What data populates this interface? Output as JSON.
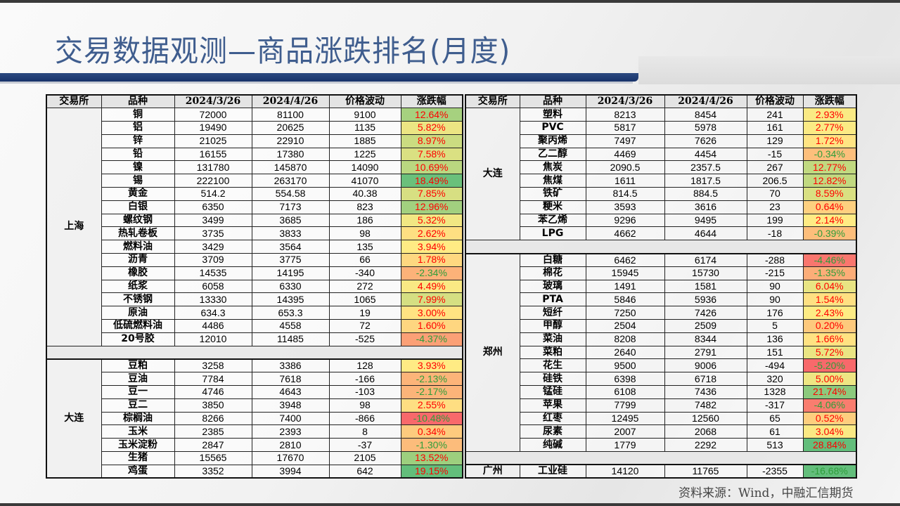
{
  "title": "交易数据观测—商品涨跌排名(月度)",
  "source": "资料来源：Wind，中融汇信期货",
  "colors": {
    "title": "#3f5d8e",
    "band": "#1f3a6e",
    "up_text": "#ff0000",
    "down_text": "#2e9e3a",
    "scale_low": "#f8696b",
    "scale_mid": "#ffeb84",
    "scale_high": "#63be7b"
  },
  "headers": [
    "交易所",
    "品种",
    "2024/3/26",
    "2024/4/26",
    "价格波动",
    "涨跌幅"
  ],
  "left": [
    {
      "exchange": "上海",
      "rows": [
        [
          "铜",
          "72000",
          "81100",
          "9100",
          "12.64%"
        ],
        [
          "铝",
          "19490",
          "20625",
          "1135",
          "5.82%"
        ],
        [
          "锌",
          "21025",
          "22910",
          "1885",
          "8.97%"
        ],
        [
          "铅",
          "16155",
          "17380",
          "1225",
          "7.58%"
        ],
        [
          "镍",
          "131780",
          "145870",
          "14090",
          "10.69%"
        ],
        [
          "锡",
          "222100",
          "263170",
          "41070",
          "18.49%"
        ],
        [
          "黄金",
          "514.2",
          "554.58",
          "40.38",
          "7.85%"
        ],
        [
          "白银",
          "6350",
          "7173",
          "823",
          "12.96%"
        ],
        [
          "螺纹钢",
          "3499",
          "3685",
          "186",
          "5.32%"
        ],
        [
          "热轧卷板",
          "3735",
          "3833",
          "98",
          "2.62%"
        ],
        [
          "燃料油",
          "3429",
          "3564",
          "135",
          "3.94%"
        ],
        [
          "沥青",
          "3709",
          "3775",
          "66",
          "1.78%"
        ],
        [
          "橡胶",
          "14535",
          "14195",
          "-340",
          "-2.34%"
        ],
        [
          "纸浆",
          "6058",
          "6330",
          "272",
          "4.49%"
        ],
        [
          "不锈钢",
          "13330",
          "14395",
          "1065",
          "7.99%"
        ],
        [
          "原油",
          "634.3",
          "653.3",
          "19",
          "3.00%"
        ],
        [
          "低硫燃料油",
          "4486",
          "4558",
          "72",
          "1.60%"
        ],
        [
          "20号胶",
          "12010",
          "11485",
          "-525",
          "-4.37%"
        ]
      ]
    },
    {
      "exchange": "大连",
      "rows": [
        [
          "豆粕",
          "3258",
          "3386",
          "128",
          "3.93%"
        ],
        [
          "豆油",
          "7784",
          "7618",
          "-166",
          "-2.13%"
        ],
        [
          "豆一",
          "4746",
          "4643",
          "-103",
          "-2.17%"
        ],
        [
          "豆二",
          "3850",
          "3948",
          "98",
          "2.55%"
        ],
        [
          "棕榈油",
          "8266",
          "7400",
          "-866",
          "-10.48%"
        ],
        [
          "玉米",
          "2385",
          "2393",
          "8",
          "0.34%"
        ],
        [
          "玉米淀粉",
          "2847",
          "2810",
          "-37",
          "-1.30%"
        ],
        [
          "生猪",
          "15565",
          "17670",
          "2105",
          "13.52%"
        ],
        [
          "鸡蛋",
          "3352",
          "3994",
          "642",
          "19.15%"
        ]
      ]
    }
  ],
  "right": [
    {
      "exchange": "大连",
      "rows": [
        [
          "塑料",
          "8213",
          "8454",
          "241",
          "2.93%"
        ],
        [
          "PVC",
          "5817",
          "5978",
          "161",
          "2.77%"
        ],
        [
          "聚丙烯",
          "7497",
          "7626",
          "129",
          "1.72%"
        ],
        [
          "乙二醇",
          "4469",
          "4454",
          "-15",
          "-0.34%"
        ],
        [
          "焦炭",
          "2090.5",
          "2357.5",
          "267",
          "12.77%"
        ],
        [
          "焦煤",
          "1611",
          "1817.5",
          "206.5",
          "12.82%"
        ],
        [
          "铁矿",
          "814.5",
          "884.5",
          "70",
          "8.59%"
        ],
        [
          "粳米",
          "3593",
          "3616",
          "23",
          "0.64%"
        ],
        [
          "苯乙烯",
          "9296",
          "9495",
          "199",
          "2.14%"
        ],
        [
          "LPG",
          "4662",
          "4644",
          "-18",
          "-0.39%"
        ]
      ]
    },
    {
      "exchange": "郑州",
      "rows": [
        [
          "白糖",
          "6462",
          "6174",
          "-288",
          "-4.46%"
        ],
        [
          "棉花",
          "15945",
          "15730",
          "-215",
          "-1.35%"
        ],
        [
          "玻璃",
          "1491",
          "1581",
          "90",
          "6.04%"
        ],
        [
          "PTA",
          "5846",
          "5936",
          "90",
          "1.54%"
        ],
        [
          "短纤",
          "7250",
          "7426",
          "176",
          "2.43%"
        ],
        [
          "甲醇",
          "2504",
          "2509",
          "5",
          "0.20%"
        ],
        [
          "菜油",
          "8208",
          "8344",
          "136",
          "1.66%"
        ],
        [
          "菜粕",
          "2640",
          "2791",
          "151",
          "5.72%"
        ],
        [
          "花生",
          "9500",
          "9006",
          "-494",
          "-5.20%"
        ],
        [
          "硅铁",
          "6398",
          "6718",
          "320",
          "5.00%"
        ],
        [
          "锰硅",
          "6108",
          "7436",
          "1328",
          "21.74%"
        ],
        [
          "苹果",
          "7799",
          "7482",
          "-317",
          "-4.06%"
        ],
        [
          "红枣",
          "12495",
          "12560",
          "65",
          "0.52%"
        ],
        [
          "尿素",
          "2007",
          "2068",
          "61",
          "3.04%"
        ],
        [
          "纯碱",
          "1779",
          "2292",
          "513",
          "28.84%"
        ]
      ]
    },
    {
      "exchange": "广州",
      "rows": [
        [
          "工业硅",
          "14120",
          "11765",
          "-2355",
          "-16.68%"
        ]
      ]
    }
  ]
}
